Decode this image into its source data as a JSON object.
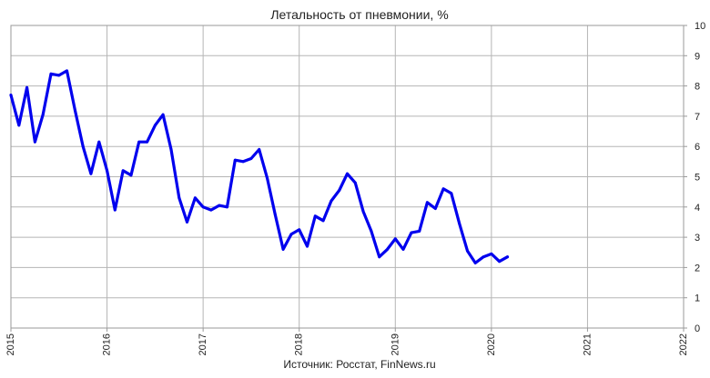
{
  "chart_data": {
    "type": "line",
    "title": "Летальность от пневмонии, %",
    "source": "Источник: Росстат, FinNews.ru",
    "x_ticks": [
      "2015",
      "2016",
      "2017",
      "2018",
      "2019",
      "2020",
      "2021",
      "2022"
    ],
    "y_ticks": [
      "0",
      "1",
      "2",
      "3",
      "4",
      "5",
      "6",
      "7",
      "8",
      "9",
      "10"
    ],
    "xlim": [
      2015.0,
      2022.0
    ],
    "ylim": [
      0,
      10
    ],
    "grid": true,
    "line_color": "#0000ee",
    "series": [
      {
        "x": [
          2015.0,
          2015.083,
          2015.167,
          2015.25,
          2015.333,
          2015.417,
          2015.5,
          2015.583,
          2015.667,
          2015.75,
          2015.833,
          2015.917,
          2016.0,
          2016.083,
          2016.167,
          2016.25,
          2016.333,
          2016.417,
          2016.5,
          2016.583,
          2016.667,
          2016.75,
          2016.833,
          2016.917,
          2017.0,
          2017.083,
          2017.167,
          2017.25,
          2017.333,
          2017.417,
          2017.5,
          2017.583,
          2017.667,
          2017.75,
          2017.833,
          2017.917,
          2018.0,
          2018.083,
          2018.167,
          2018.25,
          2018.333,
          2018.417,
          2018.5,
          2018.583,
          2018.667,
          2018.75,
          2018.833,
          2018.917,
          2019.0,
          2019.083,
          2019.167,
          2019.25,
          2019.333,
          2019.417,
          2019.5,
          2019.583,
          2019.667,
          2019.75,
          2019.833,
          2019.917,
          2020.0,
          2020.083,
          2020.167
        ],
        "values": [
          7.7,
          6.7,
          7.95,
          6.15,
          7.05,
          8.4,
          8.35,
          8.5,
          7.2,
          6.0,
          5.1,
          6.15,
          5.2,
          3.9,
          5.2,
          5.05,
          6.15,
          6.15,
          6.7,
          7.05,
          5.9,
          4.3,
          3.5,
          4.3,
          4.0,
          3.9,
          4.05,
          4.0,
          5.55,
          5.5,
          5.6,
          5.9,
          4.95,
          3.75,
          2.6,
          3.1,
          3.25,
          2.7,
          3.7,
          3.55,
          4.2,
          4.55,
          5.1,
          4.8,
          3.85,
          3.2,
          2.35,
          2.6,
          2.95,
          2.6,
          3.15,
          3.2,
          4.15,
          3.95,
          4.6,
          4.45,
          3.45,
          2.55,
          2.15,
          2.35,
          2.45,
          2.2,
          2.35
        ]
      }
    ]
  }
}
